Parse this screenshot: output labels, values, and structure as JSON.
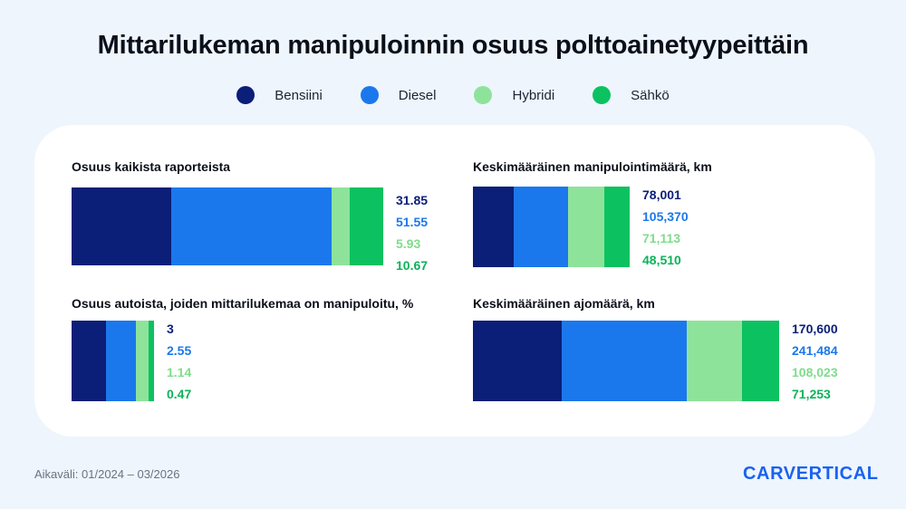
{
  "title": "Mittarilukeman manipuloinnin osuus polttoainetyypeittäin",
  "legend": [
    {
      "label": "Bensiini",
      "color": "#0b1e78"
    },
    {
      "label": "Diesel",
      "color": "#1b78ec"
    },
    {
      "label": "Hybridi",
      "color": "#8ee39b"
    },
    {
      "label": "Sähkö",
      "color": "#0cc160"
    }
  ],
  "colors": {
    "bensiini": "#0b1e78",
    "diesel": "#1b78ec",
    "hybridi": "#8ee39b",
    "sahko": "#0cc160",
    "hybridi_text": "#7fdc8c",
    "diesel_text": "#1b78ec",
    "sahko_text": "#0cb25a"
  },
  "chart_data": [
    {
      "type": "bar",
      "title": "Osuus kaikista raporteista",
      "categories": [
        "Bensiini",
        "Diesel",
        "Hybridi",
        "Sähkö"
      ],
      "values": [
        31.85,
        51.55,
        5.93,
        10.67
      ],
      "labels": [
        "31.85",
        "51.55",
        "5.93",
        "10.67"
      ]
    },
    {
      "type": "bar",
      "title": "Keskimääräinen manipulointimäärä, km",
      "categories": [
        "Bensiini",
        "Diesel",
        "Hybridi",
        "Sähkö"
      ],
      "values": [
        78001,
        105370,
        71113,
        48510
      ],
      "labels": [
        "78,001",
        "105,370",
        "71,113",
        "48,510"
      ]
    },
    {
      "type": "bar",
      "title": "Osuus autoista, joiden mittarilukemaa on manipuloitu, %",
      "categories": [
        "Bensiini",
        "Diesel",
        "Hybridi",
        "Sähkö"
      ],
      "values": [
        3,
        2.55,
        1.14,
        0.47
      ],
      "labels": [
        "3",
        "2.55",
        "1.14",
        "0.47"
      ]
    },
    {
      "type": "bar",
      "title": "Keskimääräinen ajomäärä, km",
      "categories": [
        "Bensiini",
        "Diesel",
        "Hybridi",
        "Sähkö"
      ],
      "values": [
        170600,
        241484,
        108023,
        71253
      ],
      "labels": [
        "170,600",
        "241,484",
        "108,023",
        "71,253"
      ]
    }
  ],
  "footer": "Aikaväli: 01/2024 – 03/2026",
  "logo": "CARVERTICAL"
}
